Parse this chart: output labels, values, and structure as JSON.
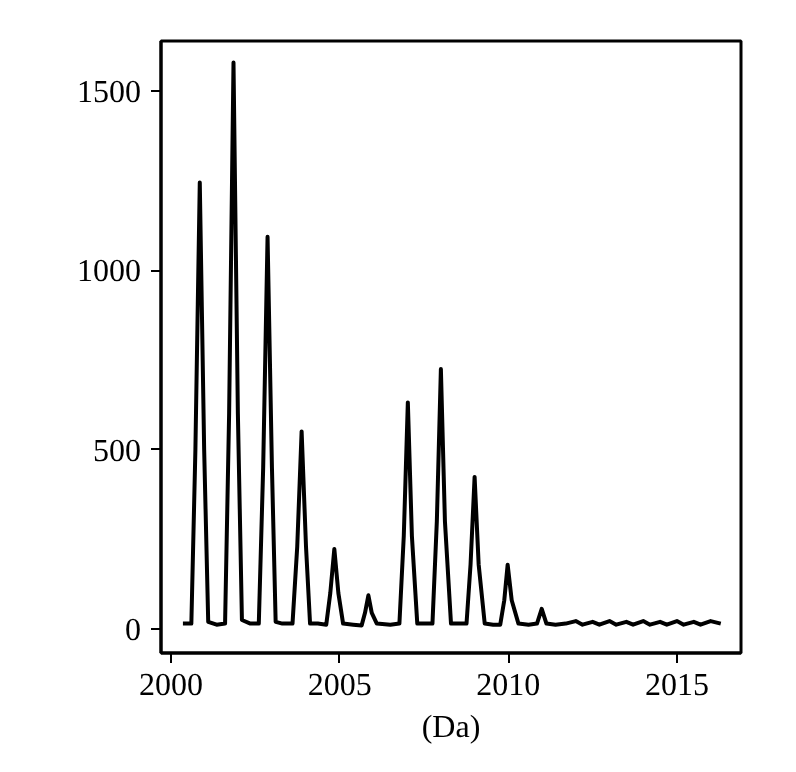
{
  "chart_data": {
    "type": "line",
    "xlabel": "(Da)",
    "x": [
      2000.35,
      2000.6,
      2000.72,
      2000.85,
      2000.98,
      2001.1,
      2001.35,
      2001.6,
      2001.72,
      2001.85,
      2001.98,
      2002.1,
      2002.35,
      2002.6,
      2002.73,
      2002.86,
      2002.99,
      2003.1,
      2003.3,
      2003.6,
      2003.74,
      2003.87,
      2004.0,
      2004.12,
      2004.35,
      2004.6,
      2004.72,
      2004.84,
      2004.96,
      2005.1,
      2005.4,
      2005.65,
      2005.75,
      2005.85,
      2005.95,
      2006.1,
      2006.5,
      2006.77,
      2006.9,
      2007.02,
      2007.14,
      2007.3,
      2007.55,
      2007.75,
      2007.88,
      2008.0,
      2008.12,
      2008.3,
      2008.55,
      2008.76,
      2008.88,
      2009.0,
      2009.12,
      2009.3,
      2009.55,
      2009.76,
      2009.88,
      2009.98,
      2010.1,
      2010.3,
      2010.6,
      2010.85,
      2010.99,
      2011.13,
      2011.4,
      2011.7,
      2012.0,
      2012.2,
      2012.5,
      2012.7,
      2013.0,
      2013.2,
      2013.5,
      2013.7,
      2014.0,
      2014.2,
      2014.5,
      2014.7,
      2015.0,
      2015.2,
      2015.5,
      2015.7,
      2016.0,
      2016.3
    ],
    "values": [
      15,
      15,
      500,
      1245,
      500,
      20,
      12,
      15,
      600,
      1580,
      600,
      25,
      15,
      15,
      450,
      1094,
      450,
      20,
      15,
      15,
      230,
      551,
      230,
      15,
      15,
      12,
      100,
      223,
      100,
      15,
      12,
      10,
      45,
      94,
      45,
      15,
      12,
      15,
      260,
      632,
      260,
      15,
      15,
      15,
      300,
      725,
      300,
      15,
      15,
      15,
      180,
      424,
      180,
      15,
      12,
      12,
      80,
      179,
      80,
      15,
      12,
      15,
      56,
      15,
      12,
      15,
      22,
      12,
      20,
      12,
      22,
      12,
      20,
      12,
      22,
      12,
      20,
      12,
      22,
      12,
      20,
      12,
      22,
      15
    ],
    "color": "#000000",
    "xlim": [
      1999.7,
      2016.9
    ],
    "ylim": [
      -67,
      1640
    ],
    "xticks": [
      2000,
      2005,
      2010,
      2015
    ],
    "yticks": [
      0,
      500,
      1000,
      1500
    ],
    "grid": false
  }
}
